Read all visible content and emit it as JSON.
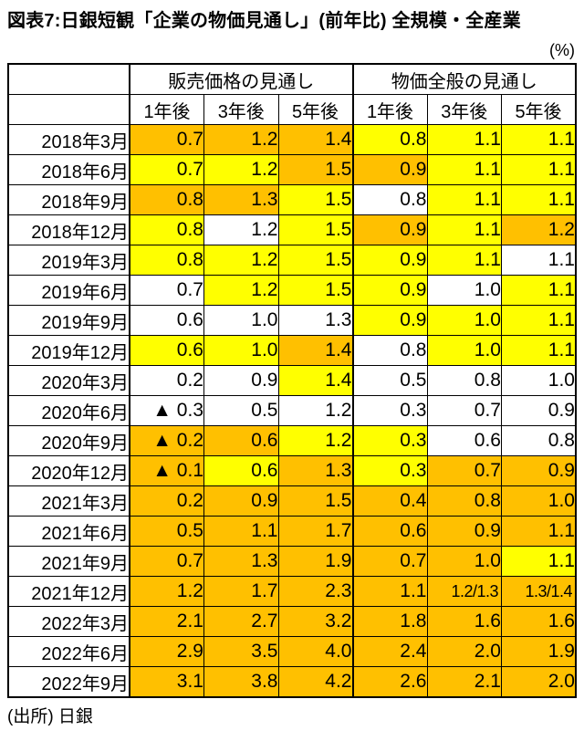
{
  "title": "図表7:日銀短観「企業の物価見通し」(前年比) 全規模・全産業",
  "unit_label": "(%)",
  "source": "(出所) 日銀",
  "fill_colors": {
    "orange": "#FFC000",
    "yellow": "#FFFF00",
    "white": "#FFFFFF"
  },
  "chart_data": {
    "type": "table",
    "title": "日銀短観「企業の物価見通し」(前年比) 全規模・全産業",
    "unit": "%",
    "column_groups": [
      "販売価格の見通し",
      "物価全般の見通し"
    ],
    "columns": [
      "1年後",
      "3年後",
      "5年後",
      "1年後",
      "3年後",
      "5年後"
    ],
    "rows": [
      {
        "period": "2018年3月",
        "values": [
          "0.7",
          "1.2",
          "1.4",
          "0.8",
          "1.1",
          "1.1"
        ],
        "fills": [
          "orange",
          "orange",
          "orange",
          "yellow",
          "yellow",
          "yellow"
        ]
      },
      {
        "period": "2018年6月",
        "values": [
          "0.7",
          "1.2",
          "1.5",
          "0.9",
          "1.1",
          "1.1"
        ],
        "fills": [
          "yellow",
          "yellow",
          "orange",
          "orange",
          "yellow",
          "yellow"
        ]
      },
      {
        "period": "2018年9月",
        "values": [
          "0.8",
          "1.3",
          "1.5",
          "0.8",
          "1.1",
          "1.1"
        ],
        "fills": [
          "orange",
          "orange",
          "yellow",
          "white",
          "yellow",
          "yellow"
        ]
      },
      {
        "period": "2018年12月",
        "values": [
          "0.8",
          "1.2",
          "1.5",
          "0.9",
          "1.1",
          "1.2"
        ],
        "fills": [
          "yellow",
          "white",
          "yellow",
          "orange",
          "yellow",
          "orange"
        ]
      },
      {
        "period": "2019年3月",
        "values": [
          "0.8",
          "1.2",
          "1.5",
          "0.9",
          "1.1",
          "1.1"
        ],
        "fills": [
          "yellow",
          "yellow",
          "yellow",
          "yellow",
          "yellow",
          "white"
        ]
      },
      {
        "period": "2019年6月",
        "values": [
          "0.7",
          "1.2",
          "1.5",
          "0.9",
          "1.0",
          "1.1"
        ],
        "fills": [
          "white",
          "yellow",
          "yellow",
          "yellow",
          "white",
          "yellow"
        ]
      },
      {
        "period": "2019年9月",
        "values": [
          "0.6",
          "1.0",
          "1.3",
          "0.9",
          "1.0",
          "1.1"
        ],
        "fills": [
          "white",
          "white",
          "white",
          "yellow",
          "yellow",
          "yellow"
        ]
      },
      {
        "period": "2019年12月",
        "values": [
          "0.6",
          "1.0",
          "1.4",
          "0.8",
          "1.0",
          "1.1"
        ],
        "fills": [
          "yellow",
          "yellow",
          "orange",
          "white",
          "yellow",
          "yellow"
        ]
      },
      {
        "period": "2020年3月",
        "values": [
          "0.2",
          "0.9",
          "1.4",
          "0.5",
          "0.8",
          "1.0"
        ],
        "fills": [
          "white",
          "white",
          "yellow",
          "white",
          "white",
          "white"
        ]
      },
      {
        "period": "2020年6月",
        "values": [
          "▲ 0.3",
          "0.5",
          "1.2",
          "0.3",
          "0.7",
          "0.9"
        ],
        "fills": [
          "white",
          "white",
          "white",
          "white",
          "white",
          "white"
        ]
      },
      {
        "period": "2020年9月",
        "values": [
          "▲ 0.2",
          "0.6",
          "1.2",
          "0.3",
          "0.6",
          "0.8"
        ],
        "fills": [
          "orange",
          "orange",
          "yellow",
          "yellow",
          "white",
          "white"
        ]
      },
      {
        "period": "2020年12月",
        "values": [
          "▲ 0.1",
          "0.6",
          "1.3",
          "0.3",
          "0.7",
          "0.9"
        ],
        "fills": [
          "orange",
          "yellow",
          "orange",
          "yellow",
          "orange",
          "orange"
        ]
      },
      {
        "period": "2021年3月",
        "values": [
          "0.2",
          "0.9",
          "1.5",
          "0.4",
          "0.8",
          "1.0"
        ],
        "fills": [
          "orange",
          "orange",
          "orange",
          "orange",
          "orange",
          "orange"
        ]
      },
      {
        "period": "2021年6月",
        "values": [
          "0.5",
          "1.1",
          "1.7",
          "0.6",
          "0.9",
          "1.1"
        ],
        "fills": [
          "orange",
          "orange",
          "orange",
          "orange",
          "orange",
          "orange"
        ]
      },
      {
        "period": "2021年9月",
        "values": [
          "0.7",
          "1.3",
          "1.9",
          "0.7",
          "1.0",
          "1.1"
        ],
        "fills": [
          "orange",
          "orange",
          "orange",
          "orange",
          "orange",
          "yellow"
        ]
      },
      {
        "period": "2021年12月",
        "values": [
          "1.2",
          "1.7",
          "2.3",
          "1.1",
          "1.2/1.3",
          "1.3/1.4"
        ],
        "fills": [
          "orange",
          "orange",
          "orange",
          "orange",
          "orange",
          "orange"
        ]
      },
      {
        "period": "2022年3月",
        "values": [
          "2.1",
          "2.7",
          "3.2",
          "1.8",
          "1.6",
          "1.6"
        ],
        "fills": [
          "orange",
          "orange",
          "orange",
          "orange",
          "orange",
          "orange"
        ]
      },
      {
        "period": "2022年6月",
        "values": [
          "2.9",
          "3.5",
          "4.0",
          "2.4",
          "2.0",
          "1.9"
        ],
        "fills": [
          "orange",
          "orange",
          "orange",
          "orange",
          "orange",
          "orange"
        ]
      },
      {
        "period": "2022年9月",
        "values": [
          "3.1",
          "3.8",
          "4.2",
          "2.6",
          "2.1",
          "2.0"
        ],
        "fills": [
          "orange",
          "orange",
          "orange",
          "orange",
          "orange",
          "orange"
        ]
      }
    ]
  }
}
